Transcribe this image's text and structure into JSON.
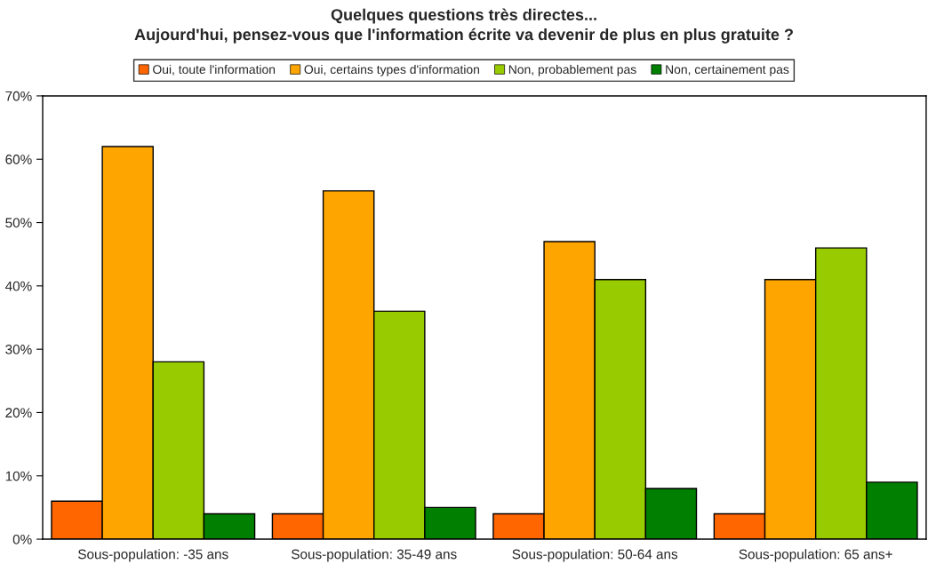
{
  "chart_data": {
    "type": "bar",
    "title": "Quelques questions très directes...\nAujourd'hui, pensez-vous que l'information écrite va devenir de plus en plus gratuite ?",
    "categories": [
      "Sous-population: -35 ans",
      "Sous-population: 35-49 ans",
      "Sous-population: 50-64 ans",
      "Sous-population: 65 ans+"
    ],
    "series": [
      {
        "name": "Oui, toute l'information",
        "color": "#ff6600",
        "values": [
          6,
          4,
          4,
          4
        ]
      },
      {
        "name": "Oui, certains types d'information",
        "color": "#ffa500",
        "values": [
          62,
          55,
          47,
          41
        ]
      },
      {
        "name": "Non, probablement pas",
        "color": "#99cc00",
        "values": [
          28,
          36,
          41,
          46
        ]
      },
      {
        "name": "Non, certainement pas",
        "color": "#007f00",
        "values": [
          4,
          5,
          8,
          9
        ]
      }
    ],
    "ylim": [
      0,
      70
    ],
    "yticks": [
      {
        "value": 0,
        "label": "0%"
      },
      {
        "value": 10,
        "label": "10%"
      },
      {
        "value": 20,
        "label": "20%"
      },
      {
        "value": 30,
        "label": "30%"
      },
      {
        "value": 40,
        "label": "40%"
      },
      {
        "value": 50,
        "label": "50%"
      },
      {
        "value": 60,
        "label": "60%"
      },
      {
        "value": 70,
        "label": "70%"
      }
    ],
    "grid": false,
    "legend": "top"
  }
}
